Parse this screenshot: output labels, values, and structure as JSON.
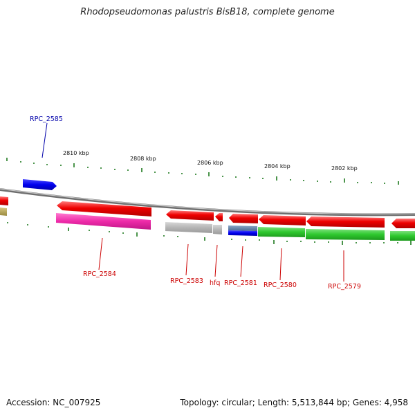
{
  "title": "Rhodopseudomonas palustris BisB18, complete genome",
  "footer": {
    "accession": "Accession: NC_007925",
    "summary": "Topology: circular; Length: 5,513,844 bp; Genes: 4,958"
  },
  "colors": {
    "backbone": "#8a8a8a",
    "tick": "#1e7a1e",
    "label_red": "#cc0000",
    "label_blue": "#0000aa"
  },
  "ticks": [
    {
      "kbp": 2810,
      "label": "2810 kbp"
    },
    {
      "kbp": 2808,
      "label": "2808 kbp"
    },
    {
      "kbp": 2806,
      "label": "2806 kbp"
    },
    {
      "kbp": 2804,
      "label": "2804 kbp"
    },
    {
      "kbp": 2802,
      "label": "2802 kbp"
    }
  ],
  "gene_labels": [
    {
      "id": "rpc2585",
      "text": "RPC_2585",
      "color": "#0000aa"
    },
    {
      "id": "rpc2584",
      "text": "RPC_2584",
      "color": "#cc0000"
    },
    {
      "id": "rpc2583",
      "text": "RPC_2583",
      "color": "#cc0000"
    },
    {
      "id": "hfq",
      "text": "hfq",
      "color": "#cc0000"
    },
    {
      "id": "rpc2581",
      "text": "RPC_2581",
      "color": "#cc0000"
    },
    {
      "id": "rpc2580",
      "text": "RPC_2580",
      "color": "#cc0000"
    },
    {
      "id": "rpc2579",
      "text": "RPC_2579",
      "color": "#cc0000"
    }
  ]
}
